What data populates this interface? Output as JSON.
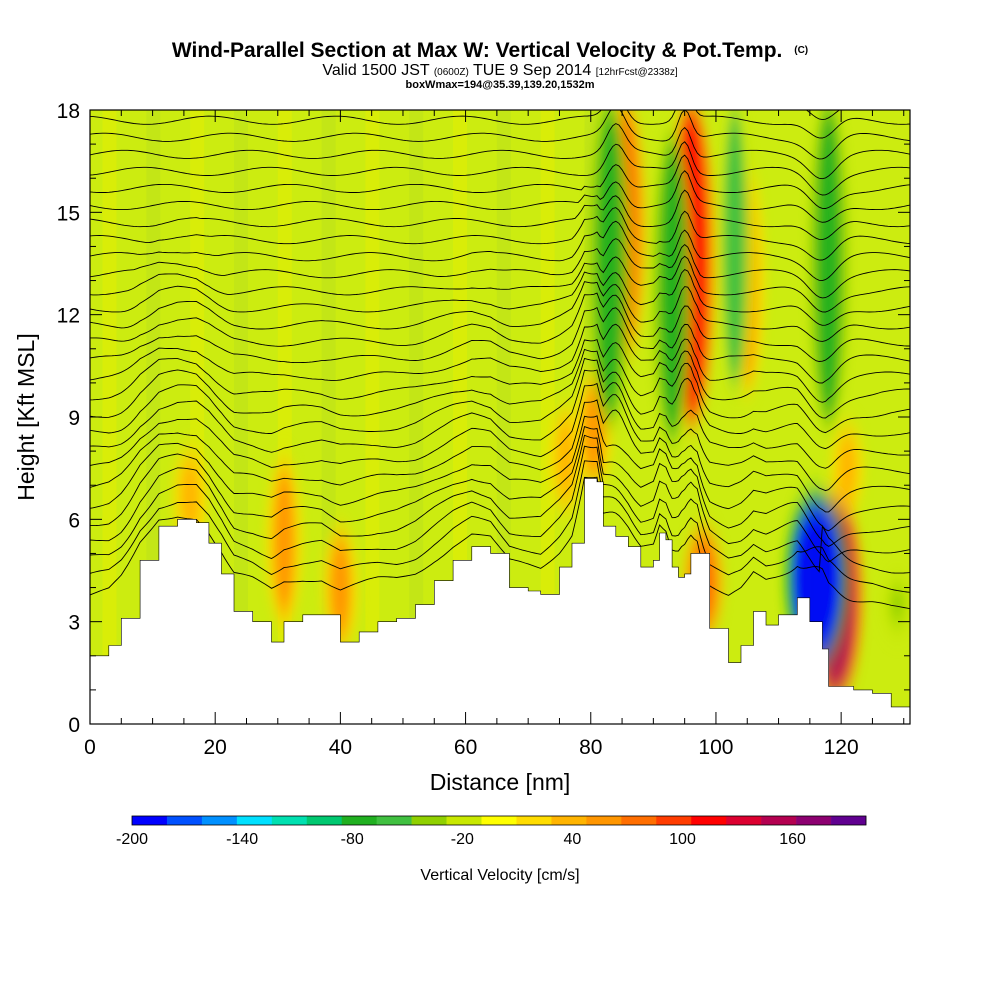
{
  "chart_data": {
    "type": "heatmap",
    "title": "Wind-Parallel Section at Max W: Vertical Velocity & Pot.Temp.",
    "title_mark": "(C)",
    "subtitle": {
      "valid_prefix": "Valid 1500 JST",
      "utc": "(0600Z)",
      "date": "TUE 9 Sep 2014",
      "forecast": "[12hrFcst@2338z]"
    },
    "subtitle2": "boxWmax=194@35.39,139.20,1532m",
    "xlabel": "Distance [nm]",
    "ylabel": "Height [Kft MSL]",
    "xlim": [
      0,
      131
    ],
    "ylim": [
      0,
      18
    ],
    "x_ticks": [
      "0",
      "20",
      "40",
      "60",
      "80",
      "100",
      "120"
    ],
    "x_tick_values": [
      0,
      20,
      40,
      60,
      80,
      100,
      120
    ],
    "y_ticks": [
      "0",
      "3",
      "6",
      "9",
      "12",
      "15",
      "18"
    ],
    "y_tick_values": [
      0,
      3,
      6,
      9,
      12,
      15,
      18
    ],
    "colorbar": {
      "label": "Vertical Velocity [cm/s]",
      "tick_labels": [
        "-200",
        "-140",
        "-80",
        "-20",
        "40",
        "100",
        "160"
      ],
      "tick_values": [
        -200,
        -140,
        -80,
        -20,
        40,
        100,
        160
      ],
      "range": [
        -200,
        200
      ],
      "colors": [
        "#0000ff",
        "#0050ff",
        "#0090ff",
        "#00e0ff",
        "#00e0b0",
        "#00c870",
        "#20b020",
        "#40c040",
        "#90d000",
        "#c8e800",
        "#ffff00",
        "#ffdc00",
        "#ffb400",
        "#ff9600",
        "#ff6e00",
        "#ff3c00",
        "#ff0000",
        "#dc0030",
        "#b40050",
        "#8c0070",
        "#600090"
      ]
    },
    "terrain": [
      [
        0,
        2
      ],
      [
        3,
        2.3
      ],
      [
        5,
        3.1
      ],
      [
        8,
        4.8
      ],
      [
        11,
        5.8
      ],
      [
        14,
        6
      ],
      [
        17,
        5.9
      ],
      [
        19,
        5.3
      ],
      [
        21,
        4.4
      ],
      [
        23,
        3.3
      ],
      [
        26,
        3
      ],
      [
        29,
        2.4
      ],
      [
        31,
        3
      ],
      [
        34,
        3.2
      ],
      [
        37,
        3.2
      ],
      [
        40,
        2.4
      ],
      [
        43,
        2.7
      ],
      [
        46,
        3
      ],
      [
        49,
        3.1
      ],
      [
        52,
        3.5
      ],
      [
        55,
        4.2
      ],
      [
        58,
        4.8
      ],
      [
        61,
        5.2
      ],
      [
        64,
        5
      ],
      [
        67,
        4
      ],
      [
        70,
        3.9
      ],
      [
        72,
        3.8
      ],
      [
        75,
        4.6
      ],
      [
        77,
        5.3
      ],
      [
        79,
        7.2
      ],
      [
        81,
        7.1
      ],
      [
        82,
        5.8
      ],
      [
        84,
        5.5
      ],
      [
        86,
        5.2
      ],
      [
        88,
        4.6
      ],
      [
        90,
        4.8
      ],
      [
        91,
        5.6
      ],
      [
        92,
        5.4
      ],
      [
        93,
        4.6
      ],
      [
        94,
        4.3
      ],
      [
        95,
        4.4
      ],
      [
        96,
        5
      ],
      [
        97,
        5
      ],
      [
        99,
        2.8
      ],
      [
        102,
        1.8
      ],
      [
        104,
        2.3
      ],
      [
        106,
        3.3
      ],
      [
        108,
        2.9
      ],
      [
        110,
        3.2
      ],
      [
        113,
        3.7
      ],
      [
        115,
        3
      ],
      [
        117,
        2.2
      ],
      [
        118,
        1.1
      ],
      [
        120,
        1.1
      ],
      [
        122,
        1
      ],
      [
        125,
        0.9
      ],
      [
        128,
        0.5
      ],
      [
        131,
        0.5
      ]
    ],
    "updrafts": [
      {
        "x": 16,
        "ybot": 5.5,
        "ytop": 7.8,
        "w": 45
      },
      {
        "x": 31,
        "ybot": 3.2,
        "ytop": 7.5,
        "w": 55
      },
      {
        "x": 40,
        "ybot": 2.5,
        "ytop": 5.5,
        "w": 55
      },
      {
        "x": 76,
        "ybot": 6.5,
        "ytop": 9,
        "w": 40
      },
      {
        "x": 80.5,
        "ybot": 7.2,
        "ytop": 10,
        "w": 60
      },
      {
        "x": 85.5,
        "ybot": 11,
        "ytop": 18,
        "w": 80
      },
      {
        "x": 96,
        "ybot": 9,
        "ytop": 18,
        "w": 120
      },
      {
        "x": 98,
        "ybot": 2.8,
        "ytop": 5.5,
        "w": 75
      },
      {
        "x": 105,
        "ybot": 10,
        "ytop": 16,
        "w": 50
      },
      {
        "x": 119,
        "ybot": 1,
        "ytop": 6.5,
        "w": 150
      },
      {
        "x": 121,
        "ybot": 6.5,
        "ytop": 8.5,
        "w": 40
      }
    ],
    "downdrafts": [
      {
        "x": 83,
        "ybot": 9,
        "ytop": 18,
        "w": -80
      },
      {
        "x": 93,
        "ybot": 8.5,
        "ytop": 17,
        "w": -70
      },
      {
        "x": 103,
        "ybot": 10,
        "ytop": 18,
        "w": -60
      },
      {
        "x": 116,
        "ybot": 2,
        "ytop": 6.5,
        "w": -190
      },
      {
        "x": 118,
        "ybot": 9,
        "ytop": 18,
        "w": -70
      },
      {
        "x": 129,
        "ybot": 3,
        "ytop": 4,
        "w": -35
      }
    ],
    "contours": {
      "variable": "Pot.Temp. (C)",
      "count": 30
    }
  }
}
